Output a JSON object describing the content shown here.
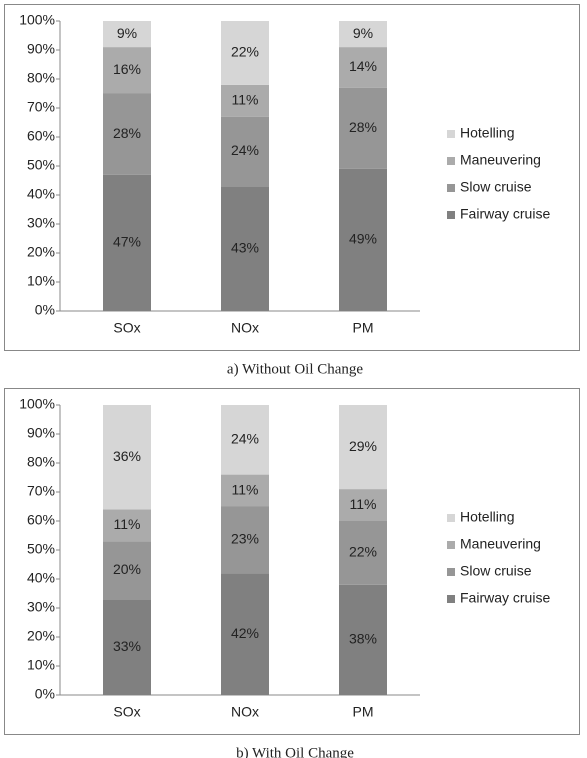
{
  "chart_data": [
    {
      "type": "stacked_bar",
      "caption": "a) Without Oil Change",
      "categories": [
        "SOx",
        "NOx",
        "PM"
      ],
      "series": [
        {
          "name": "Fairway cruise",
          "color": "#808080",
          "values": [
            47,
            43,
            49
          ],
          "value_labels": [
            "47%",
            "43%",
            "49%"
          ]
        },
        {
          "name": "Slow cruise",
          "color": "#969696",
          "values": [
            28,
            24,
            28
          ],
          "value_labels": [
            "28%",
            "24%",
            "28%"
          ]
        },
        {
          "name": "Maneuvering",
          "color": "#ababab",
          "values": [
            16,
            11,
            14
          ],
          "value_labels": [
            "16%",
            "11%",
            "14%"
          ]
        },
        {
          "name": "Hotelling",
          "color": "#d6d6d6",
          "values": [
            9,
            22,
            9
          ],
          "value_labels": [
            "9%",
            "22%",
            "9%"
          ]
        }
      ],
      "ylim": [
        0,
        100
      ],
      "yticks": [
        {
          "value": 0,
          "label": "0%"
        },
        {
          "value": 10,
          "label": "10%"
        },
        {
          "value": 20,
          "label": "20%"
        },
        {
          "value": 30,
          "label": "30%"
        },
        {
          "value": 40,
          "label": "40%"
        },
        {
          "value": 50,
          "label": "50%"
        },
        {
          "value": 60,
          "label": "60%"
        },
        {
          "value": 70,
          "label": "70%"
        },
        {
          "value": 80,
          "label": "80%"
        },
        {
          "value": 90,
          "label": "90%"
        },
        {
          "value": 100,
          "label": "100%"
        }
      ],
      "grid": false,
      "legend": "right"
    },
    {
      "type": "stacked_bar",
      "caption": "b) With Oil Change",
      "categories": [
        "SOx",
        "NOx",
        "PM"
      ],
      "series": [
        {
          "name": "Fairway cruise",
          "color": "#808080",
          "values": [
            33,
            42,
            38
          ],
          "value_labels": [
            "33%",
            "42%",
            "38%"
          ]
        },
        {
          "name": "Slow cruise",
          "color": "#969696",
          "values": [
            20,
            23,
            22
          ],
          "value_labels": [
            "20%",
            "23%",
            "22%"
          ]
        },
        {
          "name": "Maneuvering",
          "color": "#ababab",
          "values": [
            11,
            11,
            11
          ],
          "value_labels": [
            "11%",
            "11%",
            "11%"
          ]
        },
        {
          "name": "Hotelling",
          "color": "#d6d6d6",
          "values": [
            36,
            24,
            29
          ],
          "value_labels": [
            "36%",
            "24%",
            "29%"
          ]
        }
      ],
      "ylim": [
        0,
        100
      ],
      "yticks": [
        {
          "value": 0,
          "label": "0%"
        },
        {
          "value": 10,
          "label": "10%"
        },
        {
          "value": 20,
          "label": "20%"
        },
        {
          "value": 30,
          "label": "30%"
        },
        {
          "value": 40,
          "label": "40%"
        },
        {
          "value": 50,
          "label": "50%"
        },
        {
          "value": 60,
          "label": "60%"
        },
        {
          "value": 70,
          "label": "70%"
        },
        {
          "value": 80,
          "label": "80%"
        },
        {
          "value": 90,
          "label": "90%"
        },
        {
          "value": 100,
          "label": "100%"
        }
      ],
      "grid": false,
      "legend": "right"
    }
  ]
}
